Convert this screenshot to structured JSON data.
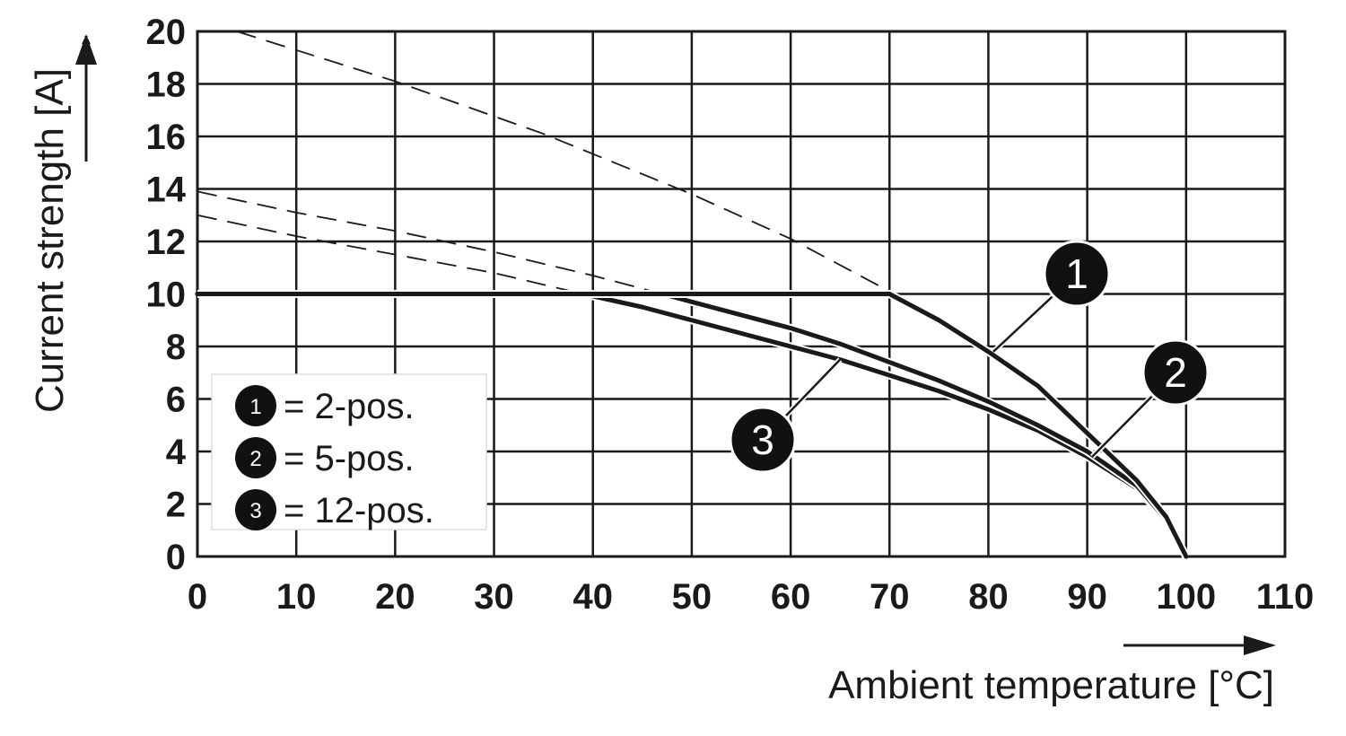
{
  "chart_data": {
    "type": "line",
    "xlabel": "Ambient temperature [°C]",
    "ylabel": "Current strength [A]",
    "xlim": [
      0,
      110
    ],
    "ylim": [
      0,
      20
    ],
    "xticks": [
      0,
      10,
      20,
      30,
      40,
      50,
      60,
      70,
      80,
      90,
      100,
      110
    ],
    "yticks": [
      0,
      2,
      4,
      6,
      8,
      10,
      12,
      14,
      16,
      18,
      20
    ],
    "grid": true,
    "legend_position": "bottom-left",
    "legend": [
      {
        "marker": "1",
        "label": "= 2-pos."
      },
      {
        "marker": "2",
        "label": "= 5-pos."
      },
      {
        "marker": "3",
        "label": "= 12-pos."
      }
    ],
    "series": [
      {
        "name": "1",
        "x": [
          0,
          10,
          20,
          30,
          40,
          50,
          60,
          70,
          75,
          80,
          85,
          90,
          95,
          98,
          100
        ],
        "y": [
          10,
          10,
          10,
          10,
          10,
          10,
          10,
          10,
          9.0,
          7.8,
          6.5,
          4.7,
          2.9,
          1.5,
          0
        ]
      },
      {
        "name": "2",
        "x": [
          0,
          10,
          20,
          30,
          40,
          47,
          50,
          55,
          60,
          65,
          70,
          75,
          80,
          85,
          90,
          95,
          98,
          100
        ],
        "y": [
          10,
          10,
          10,
          10,
          10,
          10,
          9.7,
          9.2,
          8.7,
          8.1,
          7.4,
          6.7,
          5.9,
          5.0,
          4.0,
          2.7,
          1.4,
          0
        ]
      },
      {
        "name": "3",
        "x": [
          0,
          10,
          20,
          30,
          39,
          45,
          50,
          55,
          60,
          65,
          70,
          75,
          80,
          85,
          90,
          95,
          98,
          100
        ],
        "y": [
          10,
          10,
          10,
          10,
          10,
          9.5,
          9.0,
          8.5,
          8.0,
          7.5,
          6.9,
          6.3,
          5.6,
          4.8,
          3.8,
          2.6,
          1.4,
          0
        ]
      }
    ],
    "extrapolations": [
      {
        "series": "1",
        "x": [
          4,
          20,
          35,
          50,
          60,
          70.5
        ],
        "y": [
          20,
          18.1,
          16.1,
          13.8,
          12.1,
          10
        ]
      },
      {
        "series": "2",
        "x": [
          0,
          10,
          20,
          30,
          40,
          47
        ],
        "y": [
          13.9,
          13.1,
          12.4,
          11.6,
          10.7,
          10
        ]
      },
      {
        "series": "3",
        "x": [
          0,
          10,
          20,
          30,
          39
        ],
        "y": [
          13.0,
          12.2,
          11.5,
          10.8,
          10
        ]
      }
    ],
    "markers": [
      {
        "label": "1",
        "x": 80.5,
        "y": 7.8
      },
      {
        "label": "2",
        "x": 90.5,
        "y": 3.8
      },
      {
        "label": "3",
        "x": 65,
        "y": 7.5
      }
    ]
  }
}
